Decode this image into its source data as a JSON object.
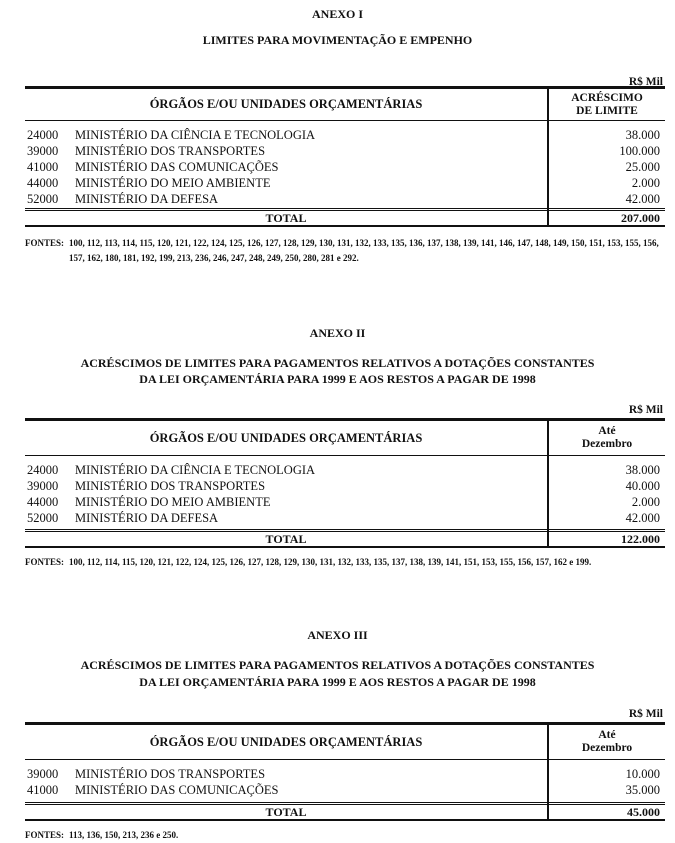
{
  "annexes": [
    {
      "title": "ANEXO I",
      "subtitle": [
        "LIMITES PARA MOVIMENTAÇÃO E EMPENHO"
      ],
      "unit": "R$ Mil",
      "col_left": "ÓRGÃOS E/OU UNIDADES ORÇAMENTÁRIAS",
      "col_right": [
        "ACRÉSCIMO",
        "DE LIMITE"
      ],
      "rows": [
        {
          "code": "24000",
          "name": "MINISTÉRIO DA CIÊNCIA E  TECNOLOGIA",
          "value": "38.000"
        },
        {
          "code": "39000",
          "name": "MINISTÉRIO DOS TRANSPORTES",
          "value": "100.000"
        },
        {
          "code": "41000",
          "name": "MINISTÉRIO DAS COMUNICAÇÕES",
          "value": "25.000"
        },
        {
          "code": "44000",
          "name": "MINISTÉRIO DO MEIO AMBIENTE",
          "value": "2.000"
        },
        {
          "code": "52000",
          "name": "MINISTÉRIO DA DEFESA",
          "value": "42.000"
        }
      ],
      "total_label": "TOTAL",
      "total_value": "207.000",
      "fontes_label": "FONTES:",
      "fontes": "100, 112, 113, 114, 115, 120, 121, 122, 124, 125, 126, 127, 128, 129, 130, 131, 132, 133, 135, 136, 137, 138, 139, 141, 146, 147, 148, 149, 150, 151, 153, 155, 156, 157, 162, 180, 181, 192, 199, 213, 236, 246, 247, 248, 249, 250, 280, 281 e 292."
    },
    {
      "title": "ANEXO II",
      "subtitle": [
        "ACRÉSCIMOS DE LIMITES PARA PAGAMENTOS RELATIVOS A DOTAÇÕES CONSTANTES",
        "DA LEI ORÇAMENTÁRIA PARA 1999 E AOS RESTOS A PAGAR DE 1998"
      ],
      "unit": "R$ Mil",
      "col_left": "ÓRGÃOS E/OU UNIDADES ORÇAMENTÁRIAS",
      "col_right": [
        "Até",
        "Dezembro"
      ],
      "rows": [
        {
          "code": "24000",
          "name": "MINISTÉRIO DA CIÊNCIA E  TECNOLOGIA",
          "value": "38.000"
        },
        {
          "code": "39000",
          "name": "MINISTÉRIO DOS TRANSPORTES",
          "value": "40.000"
        },
        {
          "code": "44000",
          "name": "MINISTÉRIO DO MEIO AMBIENTE",
          "value": "2.000"
        },
        {
          "code": "52000",
          "name": "MINISTÉRIO DA DEFESA",
          "value": "42.000"
        }
      ],
      "total_label": "TOTAL",
      "total_value": "122.000",
      "fontes_label": "FONTES:",
      "fontes": "100, 112, 114, 115, 120, 121, 122, 124, 125, 126, 127, 128, 129, 130, 131, 132, 133, 135, 137, 138, 139, 141, 151, 153, 155, 156, 157, 162 e 199."
    },
    {
      "title": "ANEXO III",
      "subtitle": [
        "ACRÉSCIMOS DE LIMITES PARA PAGAMENTOS RELATIVOS A DOTAÇÕES CONSTANTES",
        "DA LEI ORÇAMENTÁRIA PARA 1999 E AOS RESTOS A PAGAR DE 1998"
      ],
      "unit": "R$ Mil",
      "col_left": "ÓRGÃOS E/OU UNIDADES ORÇAMENTÁRIAS",
      "col_right": [
        "Até",
        "Dezembro"
      ],
      "rows": [
        {
          "code": "39000",
          "name": "MINISTÉRIO DOS TRANSPORTES",
          "value": "10.000"
        },
        {
          "code": "41000",
          "name": "MINISTÉRIO DAS COMUNICAÇÕES",
          "value": "35.000"
        }
      ],
      "total_label": "TOTAL",
      "total_value": "45.000",
      "fontes_label": "FONTES:",
      "fontes": "113, 136, 150, 213, 236 e 250."
    }
  ]
}
